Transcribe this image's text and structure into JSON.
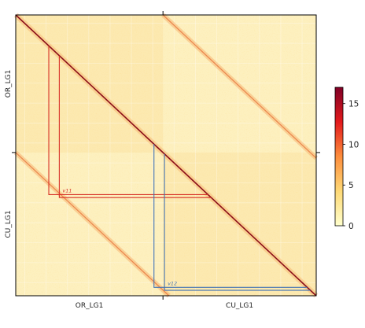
{
  "chart_data": {
    "type": "heatmap",
    "title": "",
    "x_axis": {
      "labels": [
        "OR_LG1",
        "CU_LG1"
      ],
      "boundary_fraction": 0.49
    },
    "y_axis": {
      "labels": [
        "OR_LG1",
        "CU_LG1"
      ],
      "boundary_fraction": 0.49
    },
    "colorbar": {
      "min": 0,
      "max": 17,
      "ticks": [
        0,
        5,
        10,
        15
      ],
      "colors": [
        "#ffffcc",
        "#fed976",
        "#fd8d3c",
        "#e31a1c",
        "#800026"
      ]
    },
    "annotations": [
      {
        "label": "v11",
        "color": "#d73027",
        "start_fraction": 0.11,
        "end_fraction": 0.64
      },
      {
        "label": "v12",
        "color": "#4575b4",
        "start_fraction": 0.46,
        "end_fraction": 0.97
      }
    ]
  }
}
